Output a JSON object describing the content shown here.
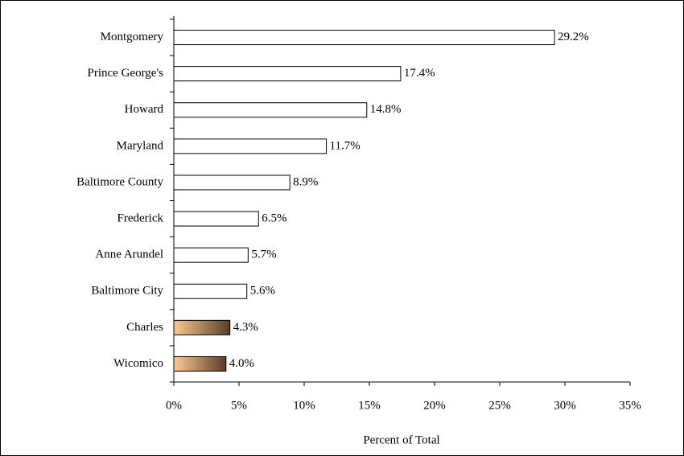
{
  "chart_data": {
    "type": "bar",
    "orientation": "horizontal",
    "categories": [
      "Montgomery",
      "Prince George's",
      "Howard",
      "Maryland",
      "Baltimore County",
      "Frederick",
      "Anne Arundel",
      "Baltimore City",
      "Charles",
      "Wicomico"
    ],
    "values": [
      29.2,
      17.4,
      14.8,
      11.7,
      8.9,
      6.5,
      5.7,
      5.6,
      4.3,
      4.0
    ],
    "value_labels": [
      "29.2%",
      "17.4%",
      "14.8%",
      "11.7%",
      "8.9%",
      "6.5%",
      "5.7%",
      "5.6%",
      "4.3%",
      "4.0%"
    ],
    "colors": [
      "#ffffff",
      "#ffffff",
      "#ffffff",
      "#ffffff",
      "#ffffff",
      "#ffffff",
      "#ffffff",
      "#ffffff",
      [
        "#fcca92",
        "#5a3d29"
      ],
      [
        "#fcca92",
        "#5a3d29"
      ]
    ],
    "xlim": [
      0,
      35
    ],
    "xticks": [
      {
        "value": 0,
        "label": "0%"
      },
      {
        "value": 5,
        "label": "5%"
      },
      {
        "value": 10,
        "label": "10%"
      },
      {
        "value": 15,
        "label": "15%"
      },
      {
        "value": 20,
        "label": "20%"
      },
      {
        "value": 25,
        "label": "25%"
      },
      {
        "value": 30,
        "label": "30%"
      },
      {
        "value": 35,
        "label": "35%"
      }
    ],
    "xlabel": "Percent of Total"
  }
}
